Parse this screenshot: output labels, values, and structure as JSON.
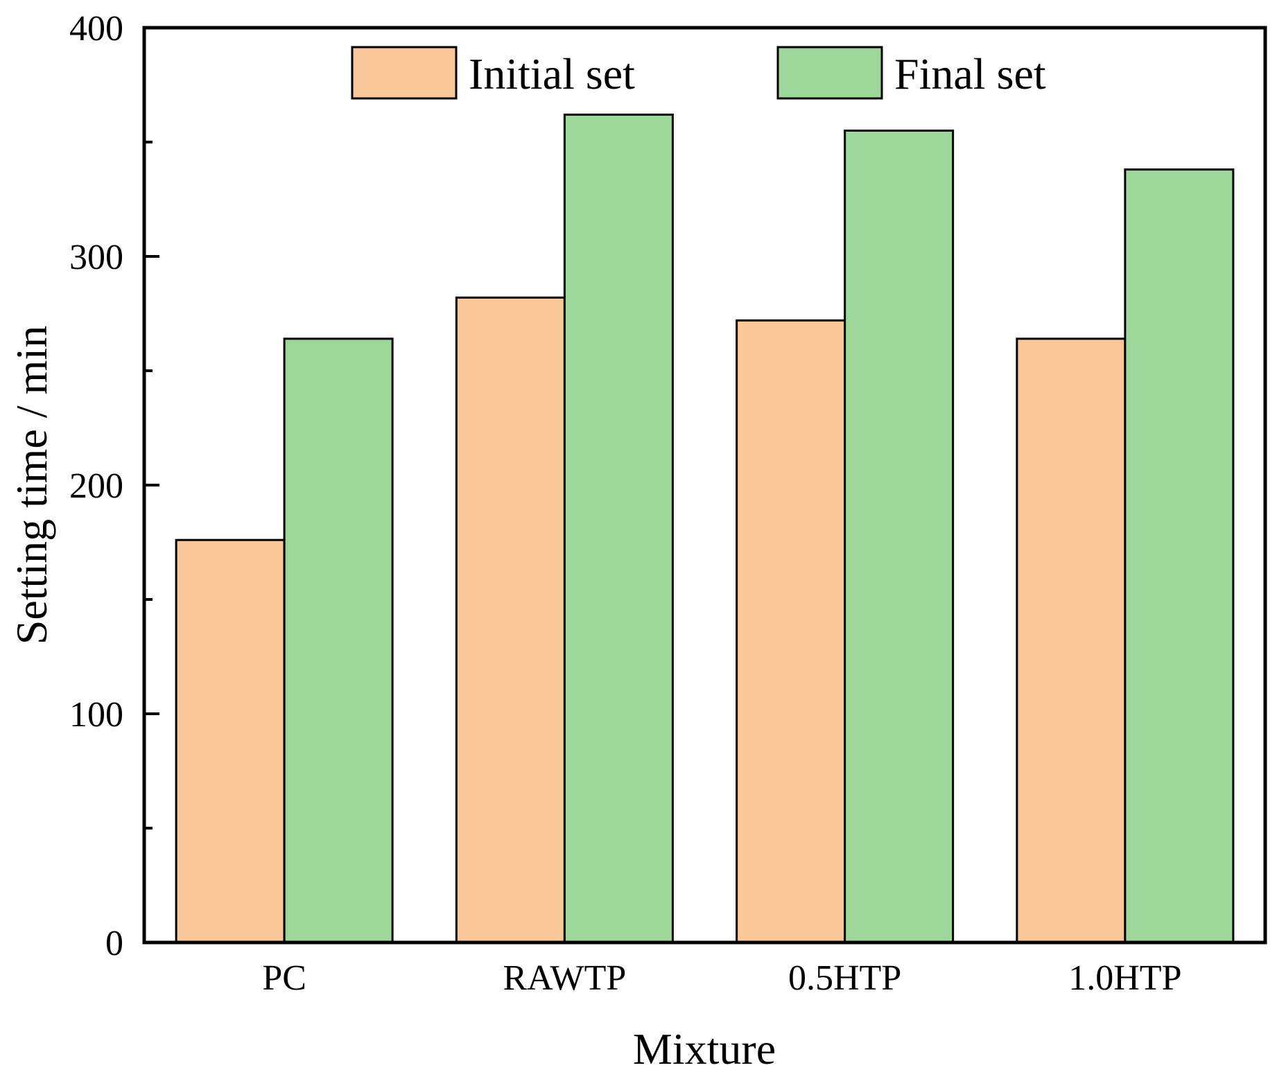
{
  "chart_data": {
    "type": "bar",
    "title": "",
    "categories": [
      "PC",
      "RAWTP",
      "0.5HTP",
      "1.0HTP"
    ],
    "series": [
      {
        "name": "Initial set",
        "color": "#FAC898",
        "values": [
          176,
          282,
          272,
          264
        ]
      },
      {
        "name": "Final set",
        "color": "#9ED79A",
        "values": [
          264,
          362,
          355,
          338
        ]
      }
    ],
    "xlabel": "Mixture",
    "ylabel": "Setting time  / min",
    "ylim": [
      0,
      400
    ],
    "yticks": [
      0,
      100,
      200,
      300,
      400
    ],
    "yticks_minor": [
      50,
      150,
      250,
      350
    ],
    "grid": false,
    "legend_position": "top"
  }
}
